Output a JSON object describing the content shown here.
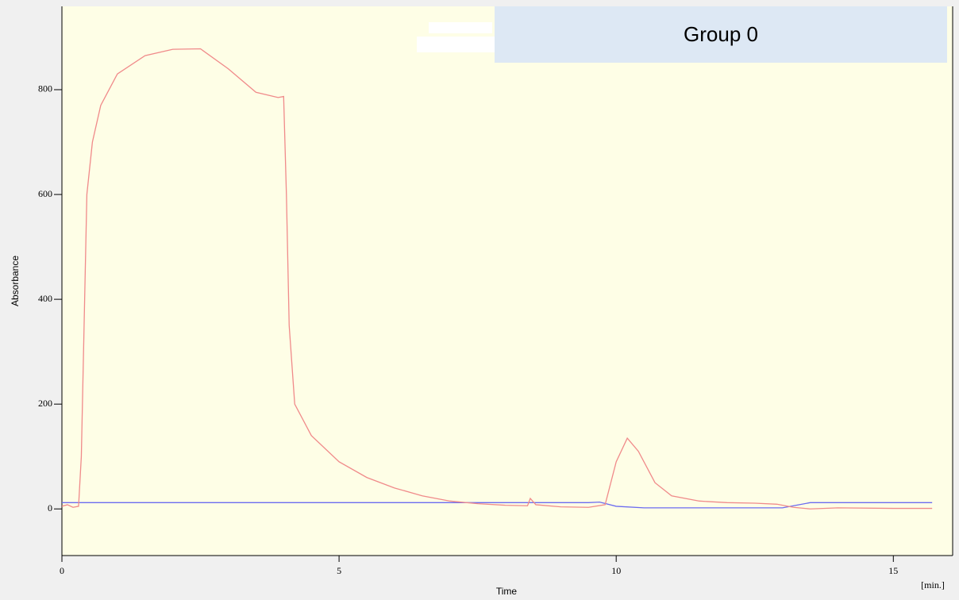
{
  "chart_data": {
    "type": "line",
    "title": "Group 0",
    "x_label": "Time",
    "x_unit": "[min.]",
    "y_label": "Absorbance",
    "xlim": [
      0,
      16.07
    ],
    "ylim": [
      -89,
      959
    ],
    "xticks": [
      0,
      5,
      10,
      15
    ],
    "yticks": [
      0,
      200,
      400,
      600,
      800
    ],
    "series": [
      {
        "color": "#f08a8a",
        "x": [
          0,
          0.1,
          0.2,
          0.3,
          0.35,
          0.45,
          0.55,
          0.7,
          1.0,
          1.5,
          2.0,
          2.5,
          3.0,
          3.5,
          3.9,
          4.0,
          4.05,
          4.1,
          4.2,
          4.5,
          5.0,
          5.5,
          6.0,
          6.5,
          7.0,
          7.5,
          8.0,
          8.4,
          8.45,
          8.55,
          9.0,
          9.5,
          9.8,
          10.0,
          10.2,
          10.4,
          10.7,
          11.0,
          11.5,
          12.0,
          12.5,
          12.9,
          13.2,
          13.5,
          14.0,
          15.0,
          15.7
        ],
        "values": [
          5,
          8,
          3,
          5,
          100,
          600,
          700,
          770,
          830,
          865,
          877,
          878,
          840,
          795,
          785,
          787,
          600,
          350,
          200,
          140,
          90,
          60,
          40,
          25,
          15,
          10,
          7,
          6,
          20,
          8,
          4,
          3,
          8,
          90,
          135,
          110,
          50,
          25,
          15,
          12,
          11,
          9,
          3,
          0,
          2,
          1,
          1
        ]
      },
      {
        "color": "#6b6bf0",
        "x": [
          0,
          9.5,
          9.7,
          10.0,
          10.5,
          13.0,
          13.5,
          15.7
        ],
        "values": [
          12,
          12,
          13,
          5,
          2,
          2,
          12,
          12
        ]
      }
    ]
  }
}
